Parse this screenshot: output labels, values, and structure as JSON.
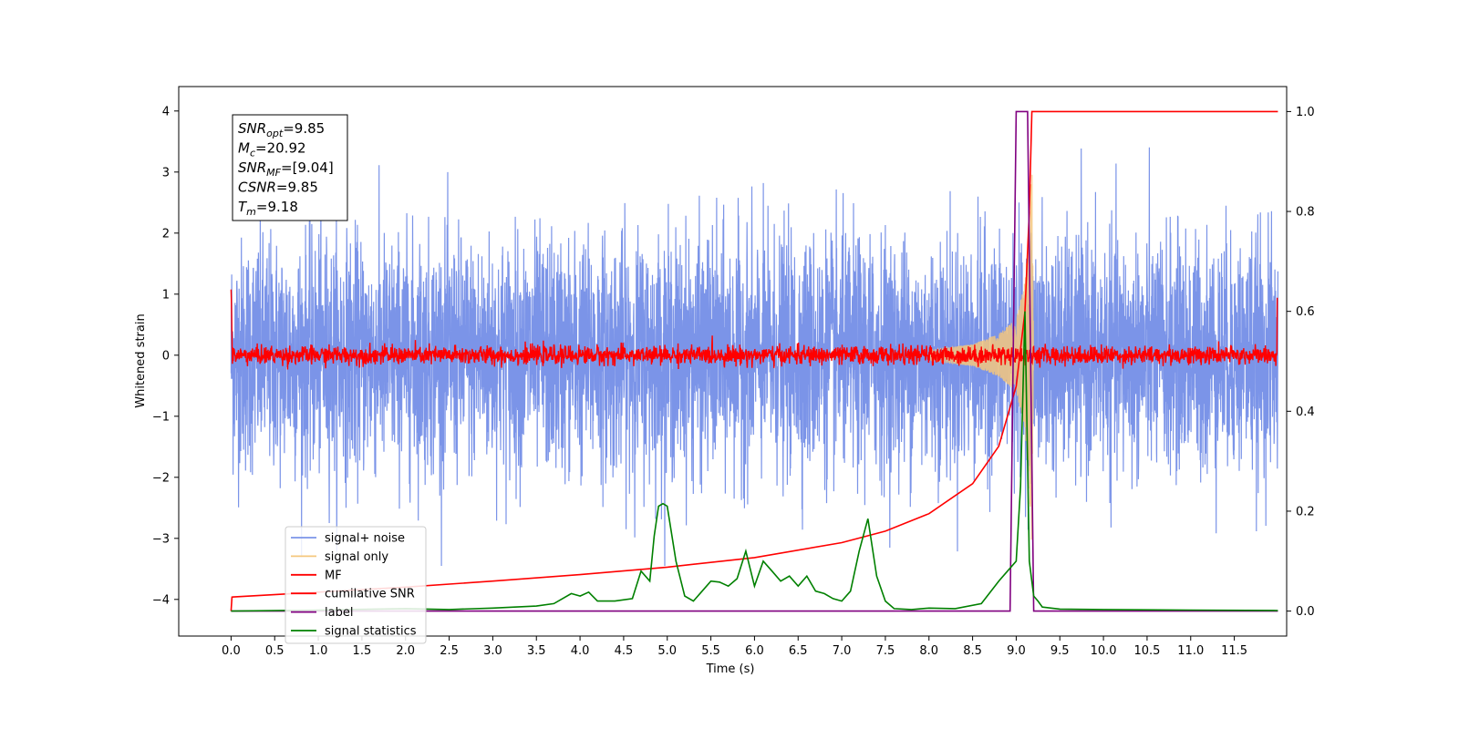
{
  "chart_data": {
    "type": "line",
    "xlabel": "Time (s)",
    "ylabel": "Whitened strain",
    "xlim": [
      -0.6,
      12.1
    ],
    "ylim": [
      -4.6,
      4.4
    ],
    "y2lim": [
      -0.05,
      1.05
    ],
    "xticks": [
      0.0,
      0.5,
      1.0,
      1.5,
      2.0,
      2.5,
      3.0,
      3.5,
      4.0,
      4.5,
      5.0,
      5.5,
      6.0,
      6.5,
      7.0,
      7.5,
      8.0,
      8.5,
      9.0,
      9.5,
      10.0,
      10.5,
      11.0,
      11.5
    ],
    "xtick_labels": [
      "0.0",
      "0.5",
      "1.0",
      "1.5",
      "2.0",
      "2.5",
      "3.0",
      "3.5",
      "4.0",
      "4.5",
      "5.0",
      "5.5",
      "6.0",
      "6.5",
      "7.0",
      "7.5",
      "8.0",
      "8.5",
      "9.0",
      "9.5",
      "10.0",
      "10.5",
      "11.0",
      "11.5"
    ],
    "yticks": [
      -4,
      -3,
      -2,
      -1,
      0,
      1,
      2,
      3,
      4
    ],
    "ytick_labels": [
      "−4",
      "−3",
      "−2",
      "−1",
      "0",
      "1",
      "2",
      "3",
      "4"
    ],
    "y2ticks": [
      0.0,
      0.2,
      0.4,
      0.6,
      0.8,
      1.0
    ],
    "y2tick_labels": [
      "0.0",
      "0.2",
      "0.4",
      "0.6",
      "0.8",
      "1.0"
    ],
    "grid": false,
    "legend_position": "lower-left",
    "annotations": [
      {
        "var": "SNR",
        "sub": "opt",
        "value": "=9.85"
      },
      {
        "var": "M",
        "sub": "c",
        "value": "=20.92"
      },
      {
        "var": "SNR",
        "sub": "MF",
        "value": "=[9.04]"
      },
      {
        "var": "CSNR",
        "sub": "",
        "value": "=9.85"
      },
      {
        "var": "T",
        "sub": "m",
        "value": "=9.18"
      }
    ],
    "series": [
      {
        "name": "signal+ noise",
        "color": "#7b94e8",
        "axis": "left",
        "t_range": [
          0.0,
          12.0
        ],
        "envelope": {
          "mean": 0.0,
          "typical_max": 2.4,
          "typical_min": -2.1,
          "extreme_max": 3.99,
          "extreme_min": -3.45
        }
      },
      {
        "name": "signal only",
        "color": "#f5c77e",
        "axis": "left",
        "chirp_amplitude": {
          "t": [
            8.0,
            8.5,
            8.8,
            9.0,
            9.1,
            9.15,
            9.18,
            9.2
          ],
          "amp": [
            0.08,
            0.18,
            0.35,
            0.6,
            1.2,
            2.2,
            3.2,
            0.0
          ]
        }
      },
      {
        "name": "MF",
        "color": "#ff0000",
        "axis": "left",
        "t_range": [
          0.0,
          12.0
        ],
        "envelope": {
          "mean": 0.0,
          "typical_max": 0.18,
          "typical_min": -0.15,
          "extreme_max": 1.0,
          "extreme_min": -0.4
        }
      },
      {
        "name": "cumilative SNR",
        "color": "#ff0000",
        "axis": "right",
        "t": [
          0.0,
          0.01,
          1.0,
          2.0,
          3.0,
          4.0,
          5.0,
          6.0,
          7.0,
          7.5,
          8.0,
          8.5,
          8.8,
          9.0,
          9.1,
          9.15,
          9.18,
          9.2,
          12.0
        ],
        "values": [
          0.0,
          0.028,
          0.038,
          0.048,
          0.06,
          0.073,
          0.088,
          0.107,
          0.137,
          0.16,
          0.195,
          0.255,
          0.33,
          0.45,
          0.6,
          0.8,
          1.0,
          1.0,
          1.0
        ]
      },
      {
        "name": "label",
        "color": "#800080",
        "axis": "right",
        "t": [
          0.0,
          8.93,
          9.0,
          9.13,
          9.2,
          12.0
        ],
        "values": [
          0.0,
          0.0,
          1.0,
          1.0,
          0.0,
          0.0
        ]
      },
      {
        "name": "signal statistics",
        "color": "#008000",
        "axis": "right",
        "t": [
          0.0,
          1.0,
          2.0,
          2.5,
          3.0,
          3.5,
          3.7,
          3.9,
          4.0,
          4.1,
          4.2,
          4.4,
          4.6,
          4.7,
          4.8,
          4.85,
          4.9,
          4.95,
          5.0,
          5.1,
          5.2,
          5.3,
          5.4,
          5.5,
          5.6,
          5.7,
          5.8,
          5.9,
          6.0,
          6.1,
          6.2,
          6.3,
          6.4,
          6.5,
          6.6,
          6.7,
          6.8,
          6.9,
          7.0,
          7.1,
          7.2,
          7.3,
          7.4,
          7.5,
          7.6,
          7.8,
          8.0,
          8.3,
          8.6,
          8.8,
          8.9,
          9.0,
          9.05,
          9.1,
          9.15,
          9.2,
          9.25,
          9.3,
          9.5,
          10.0,
          11.0,
          12.0
        ],
        "values": [
          0.0,
          0.002,
          0.005,
          0.003,
          0.006,
          0.01,
          0.015,
          0.035,
          0.03,
          0.038,
          0.02,
          0.02,
          0.025,
          0.08,
          0.06,
          0.15,
          0.21,
          0.215,
          0.21,
          0.1,
          0.03,
          0.02,
          0.04,
          0.06,
          0.058,
          0.05,
          0.065,
          0.12,
          0.05,
          0.1,
          0.08,
          0.06,
          0.07,
          0.05,
          0.07,
          0.04,
          0.035,
          0.025,
          0.02,
          0.04,
          0.12,
          0.185,
          0.07,
          0.02,
          0.005,
          0.003,
          0.006,
          0.005,
          0.015,
          0.06,
          0.08,
          0.1,
          0.25,
          0.6,
          0.1,
          0.03,
          0.02,
          0.008,
          0.004,
          0.003,
          0.002,
          0.001
        ]
      }
    ]
  }
}
